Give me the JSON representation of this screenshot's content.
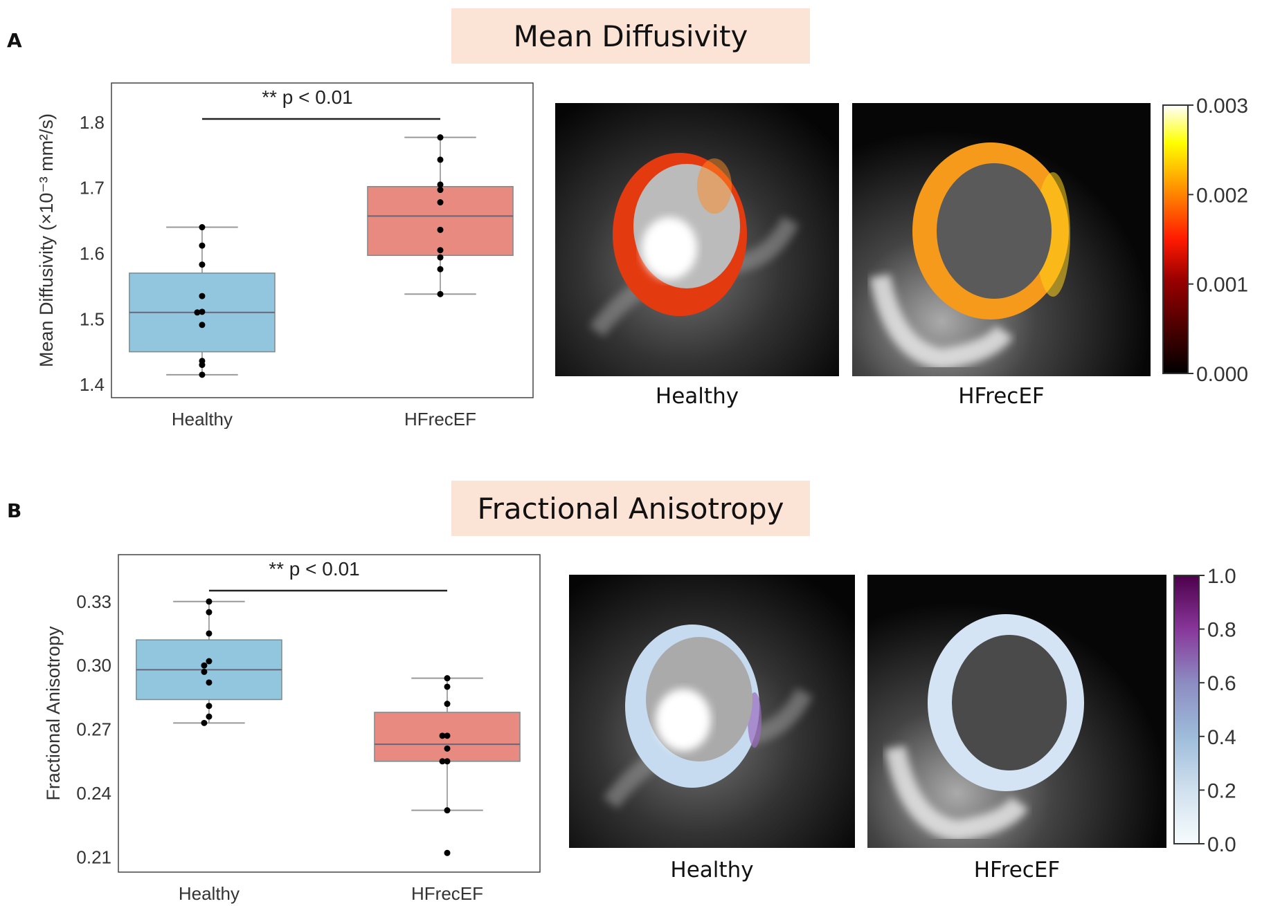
{
  "panels": {
    "A": {
      "label": "A",
      "title": "Mean Diffusivity"
    },
    "B": {
      "label": "B",
      "title": "Fractional Anisotropy"
    }
  },
  "colors": {
    "healthy_box": "#92c6de",
    "hfrecef_box": "#e88a7f",
    "title_bg": "#fbe3d6"
  },
  "chart_data": [
    {
      "type": "box",
      "panel": "A",
      "title": "",
      "xlabel": "",
      "ylabel": "Mean Diffusivity (×10⁻³ mm²/s)",
      "ylim": [
        1.38,
        1.86
      ],
      "yticks": [
        1.4,
        1.5,
        1.6,
        1.7,
        1.8
      ],
      "ytick_labels": [
        "1.4",
        "1.5",
        "1.6",
        "1.7",
        "1.8"
      ],
      "categories": [
        "Healthy",
        "HFrecEF"
      ],
      "annotation": "** p < 0.01",
      "series": [
        {
          "name": "Healthy",
          "q1": 1.45,
          "median": 1.51,
          "q3": 1.57,
          "whisker_low": 1.415,
          "whisker_high": 1.64,
          "points": [
            1.64,
            1.612,
            1.583,
            1.535,
            1.511,
            1.51,
            1.491,
            1.436,
            1.43,
            1.415
          ]
        },
        {
          "name": "HFrecEF",
          "q1": 1.597,
          "median": 1.657,
          "q3": 1.702,
          "whisker_low": 1.538,
          "whisker_high": 1.777,
          "points": [
            1.777,
            1.743,
            1.705,
            1.697,
            1.678,
            1.636,
            1.605,
            1.594,
            1.576,
            1.538
          ]
        }
      ]
    },
    {
      "type": "box",
      "panel": "B",
      "title": "",
      "xlabel": "",
      "ylabel": "Fractional Anisotropy",
      "ylim": [
        0.203,
        0.352
      ],
      "yticks": [
        0.21,
        0.24,
        0.27,
        0.3,
        0.33
      ],
      "ytick_labels": [
        "0.21",
        "0.24",
        "0.27",
        "0.30",
        "0.33"
      ],
      "categories": [
        "Healthy",
        "HFrecEF"
      ],
      "annotation": "** p < 0.01",
      "series": [
        {
          "name": "Healthy",
          "q1": 0.284,
          "median": 0.298,
          "q3": 0.312,
          "whisker_low": 0.273,
          "whisker_high": 0.33,
          "points": [
            0.33,
            0.325,
            0.315,
            0.302,
            0.3,
            0.297,
            0.292,
            0.281,
            0.276,
            0.273
          ]
        },
        {
          "name": "HFrecEF",
          "q1": 0.255,
          "median": 0.263,
          "q3": 0.278,
          "whisker_low": 0.232,
          "whisker_high": 0.294,
          "points": [
            0.294,
            0.29,
            0.282,
            0.267,
            0.267,
            0.261,
            0.255,
            0.255,
            0.232,
            0.212
          ]
        }
      ]
    },
    {
      "type": "colorbar",
      "panel": "A",
      "colormap": "hot",
      "range": [
        0.0,
        0.003
      ],
      "ticks": [
        "0.000",
        "0.001",
        "0.002",
        "0.003"
      ]
    },
    {
      "type": "colorbar",
      "panel": "B",
      "colormap": "BuPu",
      "range": [
        0.0,
        1.0
      ],
      "ticks": [
        "0.0",
        "0.2",
        "0.4",
        "0.6",
        "0.8",
        "1.0"
      ]
    }
  ],
  "images": {
    "A": [
      {
        "caption": "Healthy"
      },
      {
        "caption": "HFrecEF"
      }
    ],
    "B": [
      {
        "caption": "Healthy"
      },
      {
        "caption": "HFrecEF"
      }
    ]
  }
}
